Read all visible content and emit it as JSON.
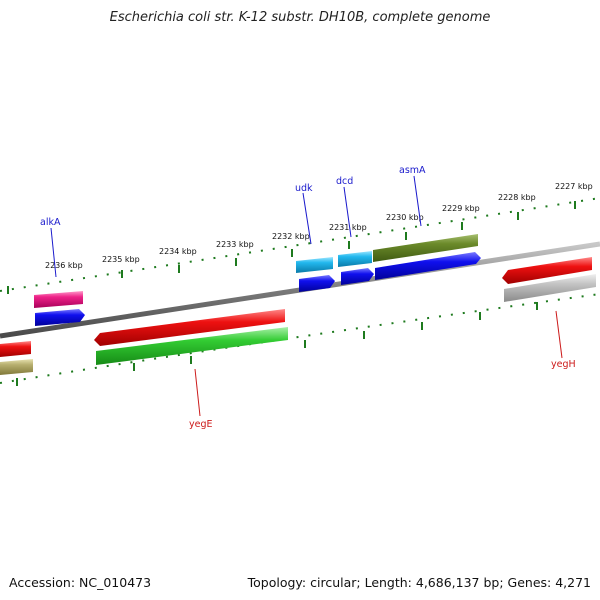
{
  "title": "Escherichia coli str. K-12 substr. DH10B, complete genome",
  "footer": {
    "accession": "Accession: NC_010473",
    "stats": "Topology: circular; Length: 4,686,137 bp; Genes: 4,271"
  },
  "ticks": [
    "2236 kbp",
    "2235 kbp",
    "2234 kbp",
    "2233 kbp",
    "2232 kbp",
    "2231 kbp",
    "2230 kbp",
    "2229 kbp",
    "2228 kbp",
    "2227 kbp"
  ],
  "gene_labels": [
    {
      "id": "alkA",
      "text": "alkA",
      "color": "#1a1acc"
    },
    {
      "id": "udk",
      "text": "udk",
      "color": "#1a1acc"
    },
    {
      "id": "dcd",
      "text": "dcd",
      "color": "#1a1acc"
    },
    {
      "id": "asmA",
      "text": "asmA",
      "color": "#1a1acc"
    },
    {
      "id": "yegE",
      "text": "yegE",
      "color": "#cc1a1a"
    },
    {
      "id": "yegH",
      "text": "yegH",
      "color": "#cc1a1a"
    }
  ],
  "colors": {
    "backbone": "#7a7a7a",
    "tick_ring": "#1e7a1e",
    "red": "#ee1111",
    "blue": "#1010ee",
    "cyan": "#22b8ee",
    "pink": "#ee2288",
    "olive": "#6b8a2a",
    "green": "#33cc33",
    "khaki": "#b8b070",
    "grey": "#b8b8b8"
  }
}
